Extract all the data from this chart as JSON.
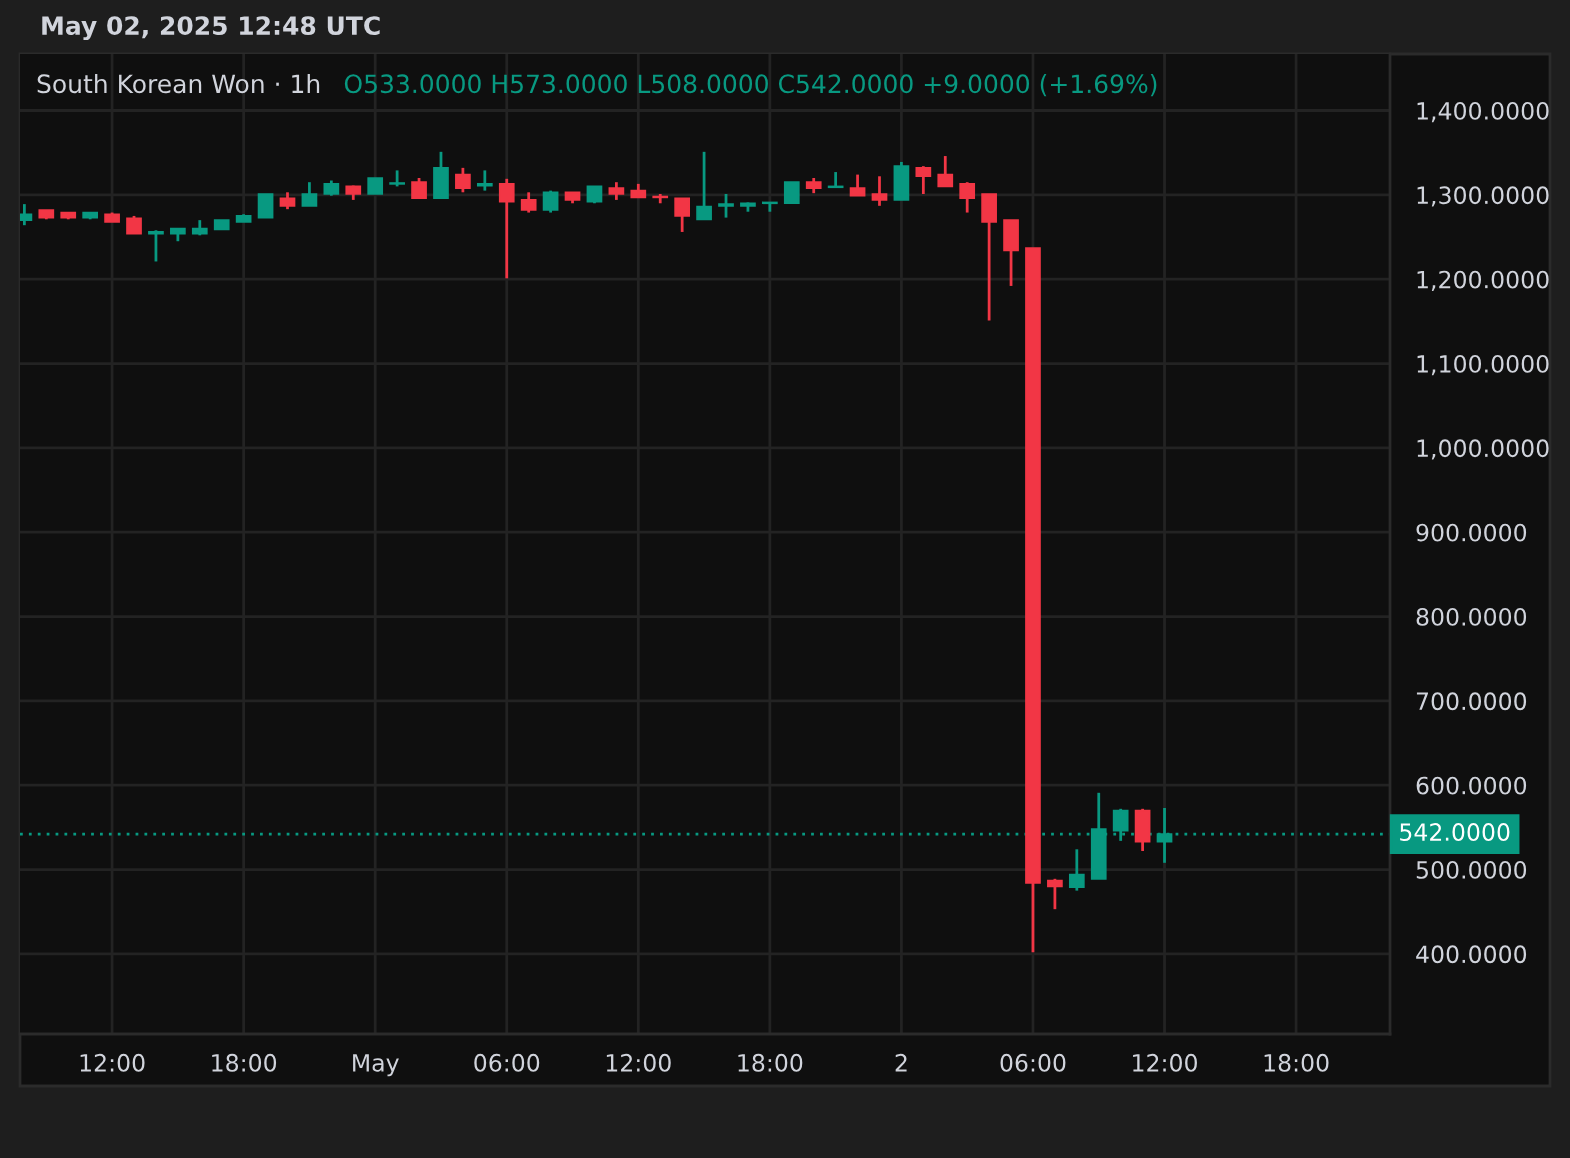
{
  "chart_data": {
    "type": "candlestick",
    "title": "South Korean Won · 1h",
    "subtitle": "O533.0000 H573.0000 L508.0000 C542.0000 +9.0000 (+1.69%)",
    "annotations": [
      "May 02, 2025 12:48 UTC"
    ],
    "x": [
      "2025-04-30T08:00",
      "2025-04-30T09:00",
      "2025-04-30T10:00",
      "2025-04-30T11:00",
      "2025-04-30T12:00",
      "2025-04-30T13:00",
      "2025-04-30T14:00",
      "2025-04-30T15:00",
      "2025-04-30T16:00",
      "2025-04-30T17:00",
      "2025-04-30T18:00",
      "2025-04-30T19:00",
      "2025-04-30T20:00",
      "2025-04-30T21:00",
      "2025-04-30T22:00",
      "2025-04-30T23:00",
      "2025-05-01T00:00",
      "2025-05-01T01:00",
      "2025-05-01T02:00",
      "2025-05-01T03:00",
      "2025-05-01T04:00",
      "2025-05-01T05:00",
      "2025-05-01T06:00",
      "2025-05-01T07:00",
      "2025-05-01T08:00",
      "2025-05-01T09:00",
      "2025-05-01T10:00",
      "2025-05-01T11:00",
      "2025-05-01T12:00",
      "2025-05-01T13:00",
      "2025-05-01T14:00",
      "2025-05-01T15:00",
      "2025-05-01T16:00",
      "2025-05-01T17:00",
      "2025-05-01T18:00",
      "2025-05-01T19:00",
      "2025-05-01T20:00",
      "2025-05-01T21:00",
      "2025-05-01T22:00",
      "2025-05-01T23:00",
      "2025-05-02T00:00",
      "2025-05-02T01:00",
      "2025-05-02T02:00",
      "2025-05-02T03:00",
      "2025-05-02T04:00",
      "2025-05-02T05:00",
      "2025-05-02T06:00",
      "2025-05-02T07:00",
      "2025-05-02T08:00",
      "2025-05-02T09:00",
      "2025-05-02T10:00",
      "2025-05-02T11:00",
      "2025-05-02T12:00"
    ],
    "ohlc": [
      [
        1270,
        1289,
        1264,
        1277
      ],
      [
        1282,
        1282,
        1271,
        1273
      ],
      [
        1279,
        1279,
        1271,
        1273
      ],
      [
        1273,
        1279,
        1271,
        1279
      ],
      [
        1277,
        1279,
        1268,
        1268
      ],
      [
        1272,
        1275,
        1254,
        1254
      ],
      [
        1254,
        1258,
        1221,
        1256
      ],
      [
        1254,
        1260,
        1245,
        1260
      ],
      [
        1254,
        1270,
        1252,
        1260
      ],
      [
        1259,
        1270,
        1259,
        1270
      ],
      [
        1268,
        1277,
        1268,
        1275
      ],
      [
        1273,
        1301,
        1273,
        1301
      ],
      [
        1296,
        1303,
        1283,
        1287
      ],
      [
        1287,
        1315,
        1287,
        1301
      ],
      [
        1301,
        1317,
        1299,
        1313
      ],
      [
        1310,
        1311,
        1294,
        1301
      ],
      [
        1301,
        1320,
        1301,
        1320
      ],
      [
        1313,
        1329,
        1310,
        1314
      ],
      [
        1315,
        1320,
        1296,
        1296
      ],
      [
        1296,
        1351,
        1296,
        1332
      ],
      [
        1324,
        1332,
        1303,
        1308
      ],
      [
        1311,
        1329,
        1305,
        1313
      ],
      [
        1313,
        1319,
        1201,
        1292
      ],
      [
        1294,
        1303,
        1279,
        1282
      ],
      [
        1282,
        1305,
        1279,
        1303
      ],
      [
        1303,
        1303,
        1290,
        1294
      ],
      [
        1292,
        1310,
        1290,
        1310
      ],
      [
        1308,
        1315,
        1294,
        1301
      ],
      [
        1305,
        1313,
        1297,
        1297
      ],
      [
        1298,
        1301,
        1290,
        1297
      ],
      [
        1296,
        1296,
        1256,
        1275
      ],
      [
        1271,
        1351,
        1271,
        1286
      ],
      [
        1287,
        1301,
        1273,
        1289
      ],
      [
        1287,
        1291,
        1280,
        1290
      ],
      [
        1290,
        1291,
        1280,
        1291
      ],
      [
        1290,
        1315,
        1290,
        1315
      ],
      [
        1315,
        1320,
        1302,
        1308
      ],
      [
        1309,
        1327,
        1309,
        1310
      ],
      [
        1308,
        1324,
        1299,
        1299
      ],
      [
        1301,
        1322,
        1287,
        1294
      ],
      [
        1294,
        1339,
        1294,
        1334
      ],
      [
        1332,
        1334,
        1301,
        1322
      ],
      [
        1324,
        1346,
        1310,
        1310
      ],
      [
        1313,
        1315,
        1279,
        1296
      ],
      [
        1301,
        1301,
        1151,
        1268
      ],
      [
        1270,
        1270,
        1192,
        1234
      ],
      [
        1237,
        1237,
        402,
        484
      ],
      [
        487,
        489,
        453,
        480
      ],
      [
        479,
        524,
        475,
        494
      ],
      [
        489,
        591,
        489,
        548
      ],
      [
        546,
        572,
        534,
        570
      ],
      [
        570,
        572,
        522,
        533
      ],
      [
        533,
        573,
        508,
        542
      ]
    ],
    "colors": [
      "#089981",
      "#f23645",
      "#f23645",
      "#089981",
      "#f23645",
      "#f23645",
      "#089981",
      "#089981",
      "#089981",
      "#089981",
      "#089981",
      "#089981",
      "#f23645",
      "#089981",
      "#089981",
      "#f23645",
      "#089981",
      "#089981",
      "#f23645",
      "#089981",
      "#f23645",
      "#089981",
      "#f23645",
      "#f23645",
      "#089981",
      "#f23645",
      "#089981",
      "#f23645",
      "#f23645",
      "#f23645",
      "#f23645",
      "#089981",
      "#089981",
      "#089981",
      "#089981",
      "#089981",
      "#f23645",
      "#089981",
      "#f23645",
      "#f23645",
      "#089981",
      "#f23645",
      "#f23645",
      "#f23645",
      "#f23645",
      "#f23645",
      "#f23645",
      "#f23645",
      "#089981",
      "#089981",
      "#089981",
      "#f23645",
      "#089981"
    ],
    "xlim": [
      "2025-04-30T07:48",
      "2025-05-02T22:17"
    ],
    "xticks": [
      {
        "value": "2025-04-30T12:00",
        "label": "12:00"
      },
      {
        "value": "2025-04-30T18:00",
        "label": "18:00"
      },
      {
        "value": "2025-05-01T00:00",
        "label": "May"
      },
      {
        "value": "2025-05-01T06:00",
        "label": "06:00"
      },
      {
        "value": "2025-05-01T12:00",
        "label": "12:00"
      },
      {
        "value": "2025-05-01T18:00",
        "label": "18:00"
      },
      {
        "value": "2025-05-02T00:00",
        "label": "2"
      },
      {
        "value": "2025-05-02T06:00",
        "label": "06:00"
      },
      {
        "value": "2025-05-02T12:00",
        "label": "12:00"
      },
      {
        "value": "2025-05-02T18:00",
        "label": "18:00"
      }
    ],
    "ylim": [
      305,
      1467
    ],
    "yticks": [
      {
        "value": 400,
        "label": "400.0000"
      },
      {
        "value": 500,
        "label": "500.0000"
      },
      {
        "value": 600,
        "label": "600.0000"
      },
      {
        "value": 700,
        "label": "700.0000"
      },
      {
        "value": 800,
        "label": "800.0000"
      },
      {
        "value": 900,
        "label": "900.0000"
      },
      {
        "value": 1000,
        "label": "1,000.0000"
      },
      {
        "value": 1100,
        "label": "1,100.0000"
      },
      {
        "value": 1200,
        "label": "1,200.0000"
      },
      {
        "value": 1300,
        "label": "1,300.0000"
      },
      {
        "value": 1400,
        "label": "1,400.0000"
      }
    ],
    "ref_lines": [
      {
        "axis": "y",
        "value": 542,
        "label": "542.0000",
        "color": "#089981",
        "line_style": "dotted"
      }
    ],
    "grid": true
  }
}
